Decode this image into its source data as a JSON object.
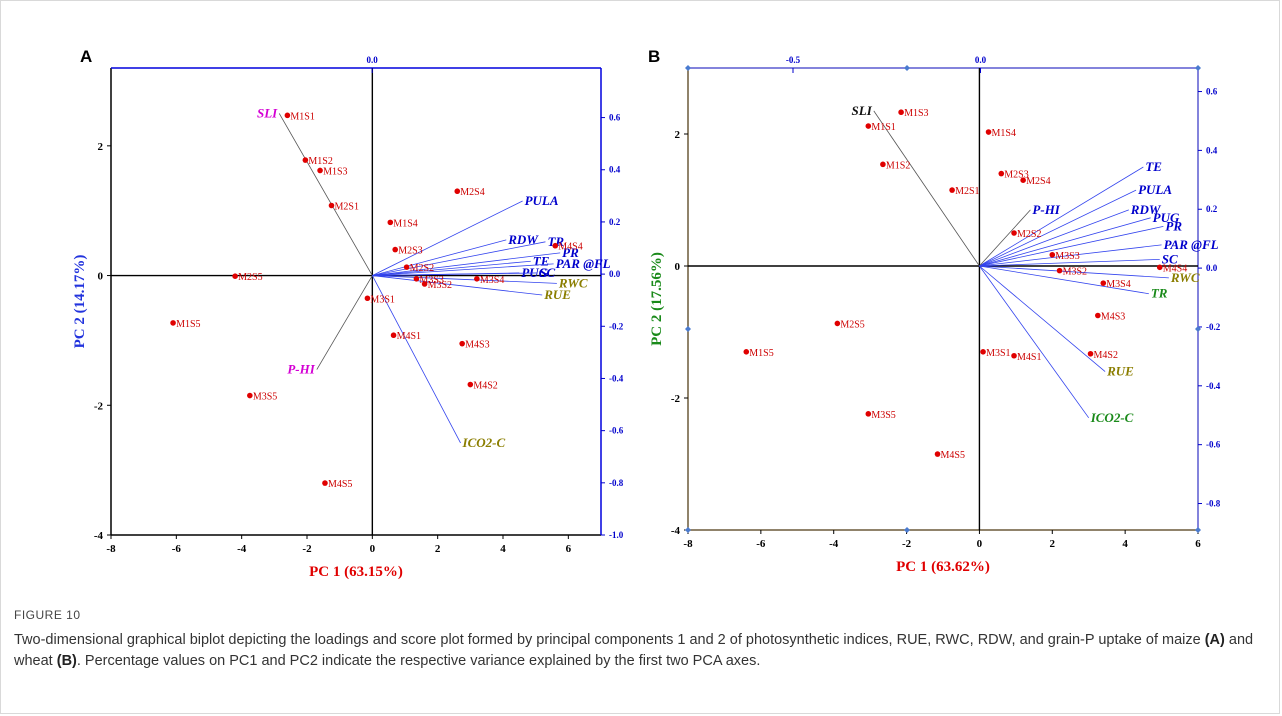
{
  "figure": {
    "label": "FIGURE 10",
    "caption_part1": "Two-dimensional graphical biplot depicting the loadings and score plot formed by principal components 1 and 2 of photosynthetic indices, RUE, RWC, RDW, and grain-P uptake of maize ",
    "caption_A": "(A)",
    "caption_part2": " and wheat ",
    "caption_B": "(B)",
    "caption_part3": ". Percentage values on PC1 and PC2 indicate the respective variance explained by the first two PCA axes."
  },
  "chart_data": [
    {
      "type": "scatter",
      "panel": "A",
      "xlabel": "PC 1 (63.15%)",
      "ylabel": "PC 2 (14.17%)",
      "xlim": [
        -8,
        7
      ],
      "ylim": [
        -4,
        3.2
      ],
      "xticks": [
        "-8",
        "-6",
        "-4",
        "-2",
        "0",
        "2",
        "4",
        "6"
      ],
      "yticks": [
        "-4",
        "-2",
        "0",
        "2"
      ],
      "top_axis_ticks": [
        "0.0"
      ],
      "right_axis_ticks": [
        "0.6",
        "0.4",
        "0.2",
        "0.0",
        "-0.2",
        "-0.4",
        "-0.6",
        "-0.8",
        "-1.0"
      ],
      "points": [
        {
          "label": "M1S1",
          "x": -2.6,
          "y": 2.47
        },
        {
          "label": "M1S2",
          "x": -2.05,
          "y": 1.78
        },
        {
          "label": "M1S3",
          "x": -1.6,
          "y": 1.62
        },
        {
          "label": "M2S1",
          "x": -1.25,
          "y": 1.08
        },
        {
          "label": "M2S4",
          "x": 2.6,
          "y": 1.3
        },
        {
          "label": "M1S4",
          "x": 0.55,
          "y": 0.82
        },
        {
          "label": "M2S3",
          "x": 0.7,
          "y": 0.4
        },
        {
          "label": "M2S2",
          "x": 1.05,
          "y": 0.13
        },
        {
          "label": "M4S4",
          "x": 5.6,
          "y": 0.46
        },
        {
          "label": "M2S5",
          "x": -4.2,
          "y": -0.01
        },
        {
          "label": "M3S3",
          "x": 1.35,
          "y": -0.05
        },
        {
          "label": "M3S2",
          "x": 1.6,
          "y": -0.13
        },
        {
          "label": "M3S4",
          "x": 3.2,
          "y": -0.05
        },
        {
          "label": "M3S1",
          "x": -0.15,
          "y": -0.35
        },
        {
          "label": "M1S5",
          "x": -6.1,
          "y": -0.73
        },
        {
          "label": "M4S1",
          "x": 0.65,
          "y": -0.92
        },
        {
          "label": "M4S3",
          "x": 2.75,
          "y": -1.05
        },
        {
          "label": "M4S2",
          "x": 3.0,
          "y": -1.68
        },
        {
          "label": "M3S5",
          "x": -3.75,
          "y": -1.85
        },
        {
          "label": "M4S5",
          "x": -1.45,
          "y": -3.2
        }
      ],
      "loadings": [
        {
          "label": "SLI",
          "x": -2.85,
          "y": 2.5,
          "color": "#d400d4"
        },
        {
          "label": "PULA",
          "x": 4.6,
          "y": 1.15,
          "color": "#0000cc"
        },
        {
          "label": "RDW",
          "x": 4.1,
          "y": 0.55,
          "color": "#0000cc"
        },
        {
          "label": "TR",
          "x": 5.3,
          "y": 0.52,
          "color": "#0000cc"
        },
        {
          "label": "PR",
          "x": 5.75,
          "y": 0.35,
          "color": "#0000cc"
        },
        {
          "label": "TE",
          "x": 4.85,
          "y": 0.22,
          "color": "#0000cc"
        },
        {
          "label": "PAR @FL",
          "x": 5.55,
          "y": 0.18,
          "color": "#0000cc"
        },
        {
          "label": "PUG",
          "x": 4.5,
          "y": 0.04,
          "color": "#0000cc"
        },
        {
          "label": "SC",
          "x": 5.05,
          "y": 0.04,
          "color": "#0000cc"
        },
        {
          "label": "RWC",
          "x": 5.65,
          "y": -0.12,
          "color": "#8b7e00"
        },
        {
          "label": "RUE",
          "x": 5.2,
          "y": -0.3,
          "color": "#8b7e00"
        },
        {
          "label": "P-HI",
          "x": -1.7,
          "y": -1.45,
          "color": "#d400d4"
        },
        {
          "label": "ICO2-C",
          "x": 2.7,
          "y": -2.58,
          "color": "#8b7e00"
        }
      ]
    },
    {
      "type": "scatter",
      "panel": "B",
      "xlabel": "PC 1 (63.62%)",
      "ylabel": "PC 2 (17.56%)",
      "xlim": [
        -8,
        6
      ],
      "ylim": [
        -4,
        3
      ],
      "xticks": [
        "-8",
        "-6",
        "-4",
        "-2",
        "0",
        "2",
        "4",
        "6"
      ],
      "yticks": [
        "-4",
        "-2",
        "0",
        "2"
      ],
      "top_axis_ticks": [
        "-0.5",
        "0.0"
      ],
      "right_axis_ticks": [
        "0.6",
        "0.4",
        "0.2",
        "0.0",
        "-0.2",
        "-0.4",
        "-0.6",
        "-0.8"
      ],
      "points": [
        {
          "label": "M1S3",
          "x": -2.15,
          "y": 2.33
        },
        {
          "label": "M1S1",
          "x": -3.05,
          "y": 2.12
        },
        {
          "label": "M1S4",
          "x": 0.25,
          "y": 2.03
        },
        {
          "label": "M1S2",
          "x": -2.65,
          "y": 1.54
        },
        {
          "label": "M2S3",
          "x": 0.6,
          "y": 1.4
        },
        {
          "label": "M2S4",
          "x": 1.2,
          "y": 1.3
        },
        {
          "label": "M2S1",
          "x": -0.75,
          "y": 1.15
        },
        {
          "label": "M2S2",
          "x": 0.95,
          "y": 0.5
        },
        {
          "label": "M3S3",
          "x": 2.0,
          "y": 0.17
        },
        {
          "label": "M3S2",
          "x": 2.2,
          "y": -0.07
        },
        {
          "label": "M4S4",
          "x": 4.95,
          "y": -0.02
        },
        {
          "label": "M3S4",
          "x": 3.4,
          "y": -0.26
        },
        {
          "label": "M4S3",
          "x": 3.25,
          "y": -0.75
        },
        {
          "label": "M2S5",
          "x": -3.9,
          "y": -0.87
        },
        {
          "label": "M1S5",
          "x": -6.4,
          "y": -1.3
        },
        {
          "label": "M3S1",
          "x": 0.1,
          "y": -1.3
        },
        {
          "label": "M4S1",
          "x": 0.95,
          "y": -1.36
        },
        {
          "label": "M4S2",
          "x": 3.05,
          "y": -1.33
        },
        {
          "label": "M3S5",
          "x": -3.05,
          "y": -2.24
        },
        {
          "label": "M4S5",
          "x": -1.15,
          "y": -2.85
        }
      ],
      "loadings": [
        {
          "label": "SLI",
          "x": -2.9,
          "y": 2.35,
          "color": "#111111"
        },
        {
          "label": "TE",
          "x": 4.5,
          "y": 1.5,
          "color": "#0000cc"
        },
        {
          "label": "PULA",
          "x": 4.3,
          "y": 1.15,
          "color": "#0000cc"
        },
        {
          "label": "P-HI",
          "x": 1.4,
          "y": 0.85,
          "color": "#0000cc"
        },
        {
          "label": "RDW",
          "x": 4.1,
          "y": 0.85,
          "color": "#0000cc"
        },
        {
          "label": "PUG",
          "x": 4.7,
          "y": 0.73,
          "color": "#0000cc"
        },
        {
          "label": "PR",
          "x": 5.05,
          "y": 0.6,
          "color": "#0000cc"
        },
        {
          "label": "PAR @FL",
          "x": 5.0,
          "y": 0.32,
          "color": "#0000cc"
        },
        {
          "label": "SC",
          "x": 4.95,
          "y": 0.1,
          "color": "#0000cc"
        },
        {
          "label": "RWC",
          "x": 5.2,
          "y": -0.18,
          "color": "#8b7e00"
        },
        {
          "label": "TR",
          "x": 4.65,
          "y": -0.42,
          "color": "#1a8a1a"
        },
        {
          "label": "RUE",
          "x": 3.45,
          "y": -1.6,
          "color": "#8b7e00"
        },
        {
          "label": "ICO2-C",
          "x": 3.0,
          "y": -2.3,
          "color": "#1a8a1a"
        }
      ]
    }
  ]
}
